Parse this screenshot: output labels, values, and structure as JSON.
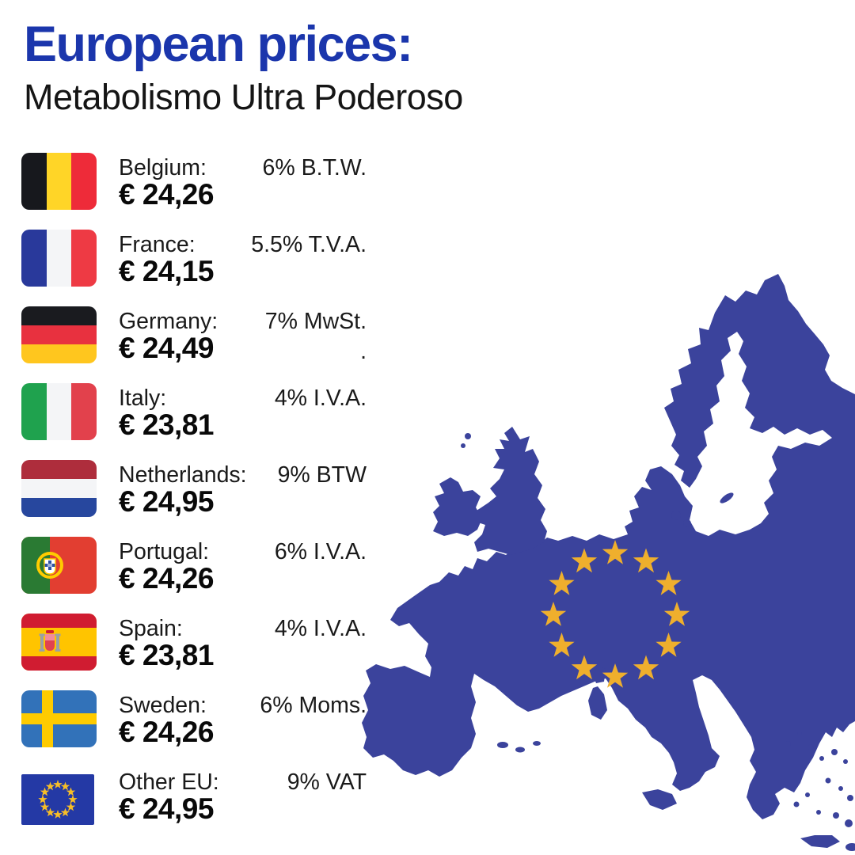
{
  "title": "European prices:",
  "subtitle": "Metabolismo Ultra Poderoso",
  "colors": {
    "title_blue": "#1B36AC",
    "subtitle_black": "#151515",
    "label_black": "#1A1A1A",
    "price_black": "#090909",
    "map_blue": "#3B439C",
    "map_star_gold": "#EFAF2D",
    "background": "#FFFFFF"
  },
  "rows": [
    {
      "id": "belgium",
      "name": "Belgium:",
      "price": "€ 24,26",
      "tax": "6% B.T.W.",
      "flag": {
        "type": "vertical",
        "colors": [
          "#17181D",
          "#FFD527",
          "#EE2B39"
        ]
      }
    },
    {
      "id": "france",
      "name": "France:",
      "price": "€ 24,15",
      "tax": "5.5% T.V.A.",
      "flag": {
        "type": "vertical",
        "colors": [
          "#29399B",
          "#F4F5F7",
          "#EE3A44"
        ]
      }
    },
    {
      "id": "germany",
      "name": "Germany:",
      "price": "€ 24,49",
      "tax": "7% MwSt.",
      "tax_line2": ".",
      "flag": {
        "type": "horizontal",
        "colors": [
          "#1A1B1F",
          "#E8313F",
          "#FFC61E"
        ]
      }
    },
    {
      "id": "italy",
      "name": "Italy:",
      "price": "€ 23,81",
      "tax": "4% I.V.A.",
      "flag": {
        "type": "vertical",
        "colors": [
          "#1FA24E",
          "#F4F5F7",
          "#E2414C"
        ]
      }
    },
    {
      "id": "netherlands",
      "name": "Netherlands:",
      "price": "€ 24,95",
      "tax": "9% BTW",
      "flag": {
        "type": "horizontal",
        "colors": [
          "#AE2D3C",
          "#F4F5F7",
          "#27479E"
        ]
      }
    },
    {
      "id": "portugal",
      "name": "Portugal:",
      "price": "€ 24,26",
      "tax": "6% I.V.A.",
      "flag": {
        "type": "portugal",
        "colors": [
          "#2A7A33",
          "#E23E31",
          "#FFCC00",
          "#FFFFFF",
          "#2B51A5"
        ]
      }
    },
    {
      "id": "spain",
      "name": "Spain:",
      "price": "€ 23,81",
      "tax": "4% I.V.A.",
      "flag": {
        "type": "spain",
        "colors": [
          "#D01C31",
          "#FFC400",
          "#9AA0A6",
          "#F28B9C",
          "#E04251"
        ]
      }
    },
    {
      "id": "sweden",
      "name": "Sweden:",
      "price": "€ 24,26",
      "tax": "6% Moms.",
      "flag": {
        "type": "sweden",
        "colors": [
          "#3272B9",
          "#FECB00"
        ]
      }
    },
    {
      "id": "other-eu",
      "name": "Other EU:",
      "price": "€ 24,95",
      "tax": "9% VAT",
      "flag": {
        "type": "eu",
        "colors": [
          "#2439A5",
          "#F7BE27"
        ]
      }
    }
  ],
  "map": {
    "region": "European Union",
    "stars_count": 12
  }
}
